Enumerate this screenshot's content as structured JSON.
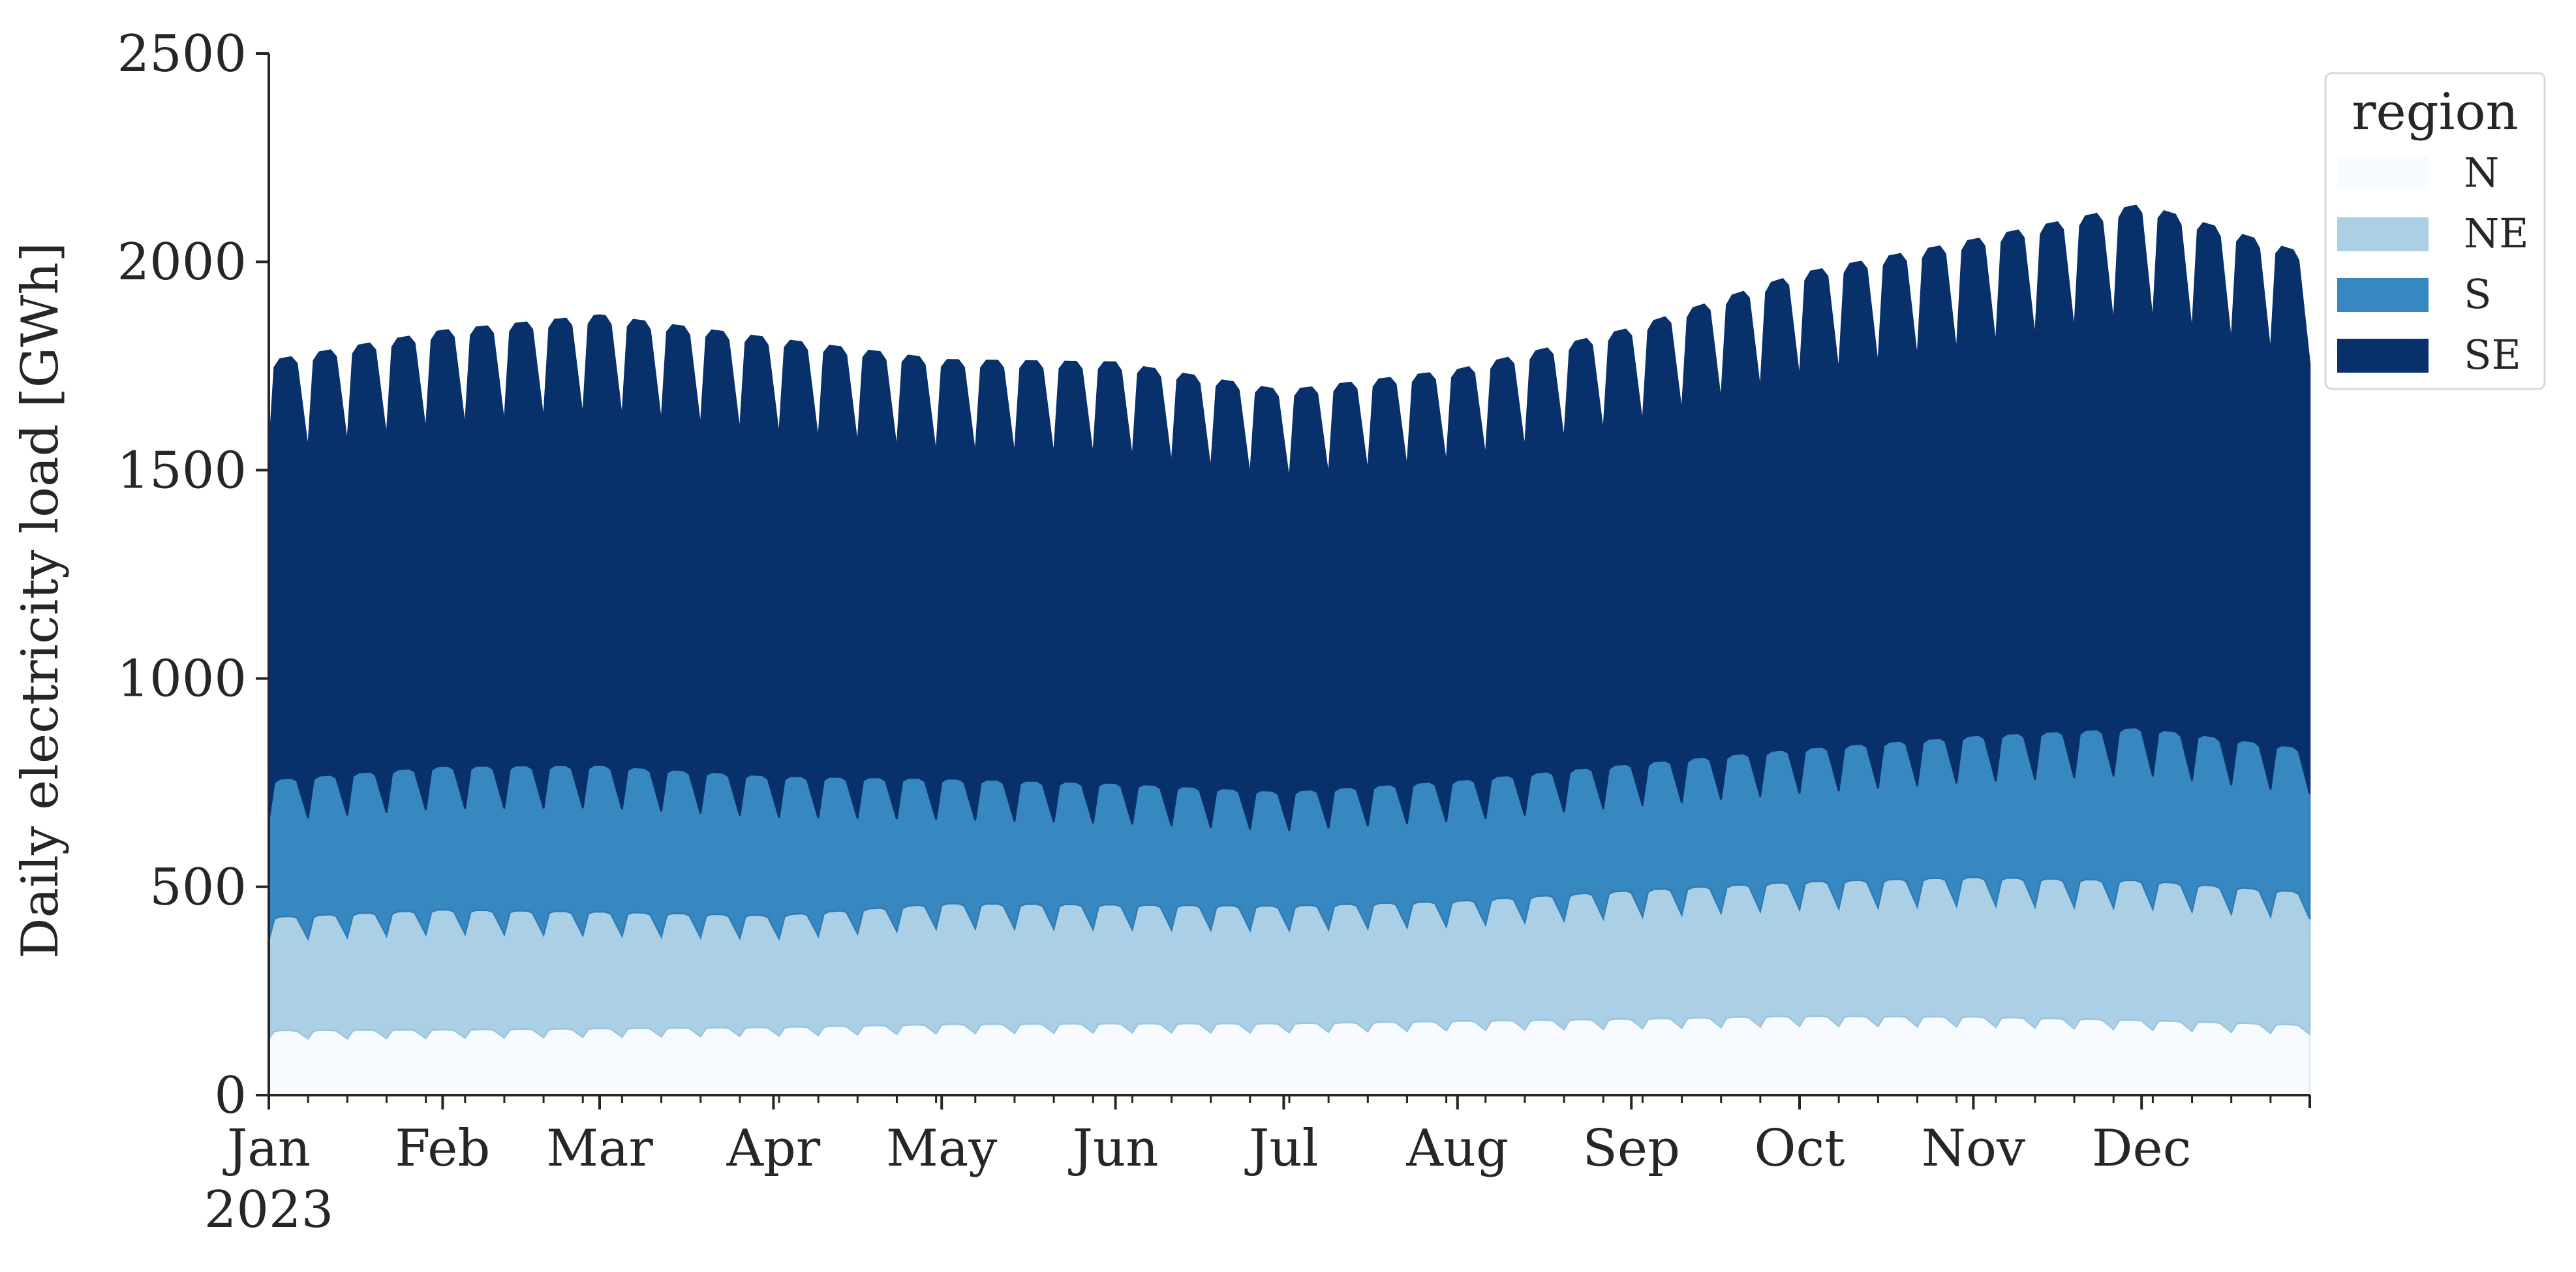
{
  "chart_data": {
    "type": "area",
    "stacked": true,
    "ylabel": "Daily electricity load [GWh]",
    "xlabel": "",
    "ylim": [
      0,
      2500
    ],
    "yticks": [
      0,
      500,
      1000,
      1500,
      2000,
      2500
    ],
    "xlim": [
      "2023-01-01",
      "2023-12-31"
    ],
    "x_ticks": [
      {
        "date": "2023-01-01",
        "label": "Jan"
      },
      {
        "date": "2023-02-01",
        "label": "Feb"
      },
      {
        "date": "2023-03-01",
        "label": "Mar"
      },
      {
        "date": "2023-04-01",
        "label": "Apr"
      },
      {
        "date": "2023-05-01",
        "label": "May"
      },
      {
        "date": "2023-06-01",
        "label": "Jun"
      },
      {
        "date": "2023-07-01",
        "label": "Jul"
      },
      {
        "date": "2023-08-01",
        "label": "Aug"
      },
      {
        "date": "2023-09-01",
        "label": "Sep"
      },
      {
        "date": "2023-10-01",
        "label": "Oct"
      },
      {
        "date": "2023-11-01",
        "label": "Nov"
      },
      {
        "date": "2023-12-01",
        "label": "Dec"
      }
    ],
    "year_label": "2023",
    "grid": false,
    "legend": {
      "title": "region",
      "placement": "upper-right-outside"
    },
    "weekly_pattern": {
      "values": [
        0.87,
        0.99,
        1.0,
        1.0,
        1.0,
        0.99,
        0.93
      ],
      "start_weekday": 0
    },
    "series": [
      {
        "name": "N",
        "color": "#f7fbff",
        "edge_color": "#dce9f6",
        "weekday_profile": [
          {
            "date": "2023-01-01",
            "value": 155
          },
          {
            "date": "2023-02-01",
            "value": 157
          },
          {
            "date": "2023-03-01",
            "value": 160
          },
          {
            "date": "2023-04-01",
            "value": 163
          },
          {
            "date": "2023-05-01",
            "value": 170
          },
          {
            "date": "2023-06-01",
            "value": 172
          },
          {
            "date": "2023-07-01",
            "value": 172
          },
          {
            "date": "2023-08-01",
            "value": 178
          },
          {
            "date": "2023-09-01",
            "value": 183
          },
          {
            "date": "2023-10-01",
            "value": 190
          },
          {
            "date": "2023-11-01",
            "value": 188
          },
          {
            "date": "2023-12-01",
            "value": 180
          },
          {
            "date": "2023-12-31",
            "value": 168
          }
        ]
      },
      {
        "name": "NE",
        "color": "#abcfe5",
        "edge_color": "#9ac5e0",
        "weekday_profile": [
          {
            "date": "2023-01-01",
            "value": 272
          },
          {
            "date": "2023-02-01",
            "value": 288
          },
          {
            "date": "2023-03-01",
            "value": 280
          },
          {
            "date": "2023-04-01",
            "value": 268
          },
          {
            "date": "2023-05-01",
            "value": 290
          },
          {
            "date": "2023-06-01",
            "value": 285
          },
          {
            "date": "2023-07-01",
            "value": 282
          },
          {
            "date": "2023-08-01",
            "value": 288
          },
          {
            "date": "2023-09-01",
            "value": 308
          },
          {
            "date": "2023-10-01",
            "value": 322
          },
          {
            "date": "2023-11-01",
            "value": 335
          },
          {
            "date": "2023-12-01",
            "value": 335
          },
          {
            "date": "2023-12-31",
            "value": 318
          }
        ]
      },
      {
        "name": "S",
        "color": "#3787c0",
        "edge_color": "#2f7bb5",
        "weekday_profile": [
          {
            "date": "2023-01-01",
            "value": 330
          },
          {
            "date": "2023-02-01",
            "value": 345
          },
          {
            "date": "2023-03-01",
            "value": 352
          },
          {
            "date": "2023-04-01",
            "value": 335
          },
          {
            "date": "2023-05-01",
            "value": 300
          },
          {
            "date": "2023-06-01",
            "value": 292
          },
          {
            "date": "2023-07-01",
            "value": 275
          },
          {
            "date": "2023-08-01",
            "value": 290
          },
          {
            "date": "2023-09-01",
            "value": 305
          },
          {
            "date": "2023-10-01",
            "value": 320
          },
          {
            "date": "2023-11-01",
            "value": 340
          },
          {
            "date": "2023-12-01",
            "value": 368
          },
          {
            "date": "2023-12-31",
            "value": 345
          }
        ]
      },
      {
        "name": "SE",
        "color": "#08306b",
        "edge_color": "#08306b",
        "weekday_profile": [
          {
            "date": "2023-01-01",
            "value": 1005
          },
          {
            "date": "2023-02-01",
            "value": 1045
          },
          {
            "date": "2023-03-01",
            "value": 1080
          },
          {
            "date": "2023-04-01",
            "value": 1050
          },
          {
            "date": "2023-05-01",
            "value": 1005
          },
          {
            "date": "2023-06-01",
            "value": 1010
          },
          {
            "date": "2023-07-01",
            "value": 962
          },
          {
            "date": "2023-08-01",
            "value": 985
          },
          {
            "date": "2023-09-01",
            "value": 1045
          },
          {
            "date": "2023-10-01",
            "value": 1140
          },
          {
            "date": "2023-11-01",
            "value": 1190
          },
          {
            "date": "2023-12-01",
            "value": 1255
          },
          {
            "date": "2023-12-31",
            "value": 1185
          }
        ]
      }
    ]
  }
}
